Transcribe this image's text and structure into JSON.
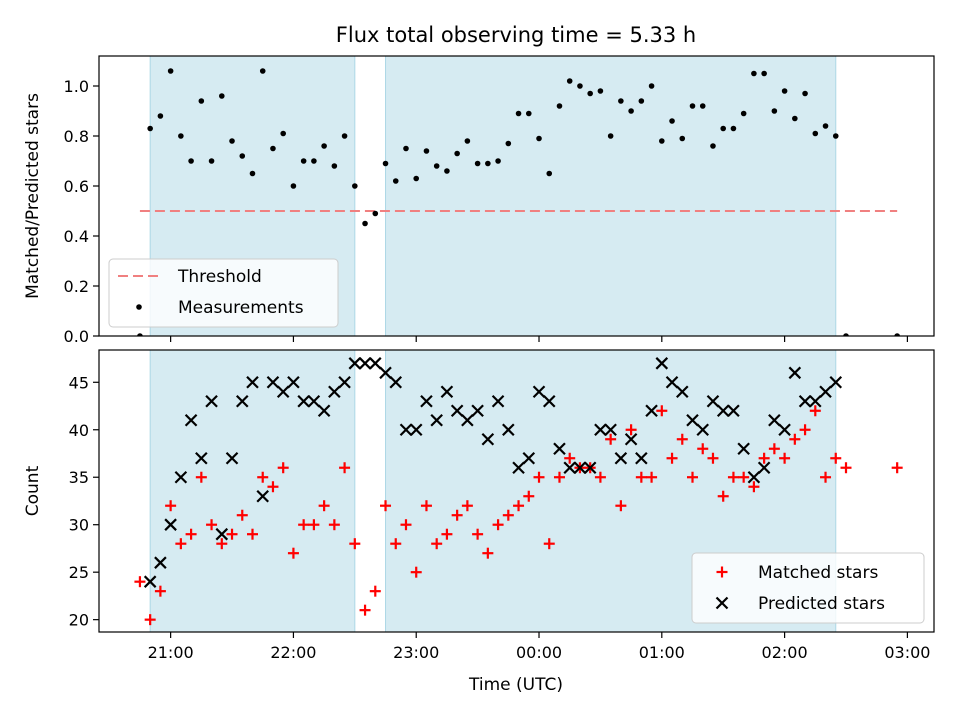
{
  "figure": {
    "title": "Flux total observing time = 5.33 h",
    "xlabel": "Time (UTC)",
    "xtick_labels": [
      "21:00",
      "22:00",
      "23:00",
      "00:00",
      "01:00",
      "02:00",
      "03:00"
    ]
  },
  "colors": {
    "shade": "#add8e6",
    "threshold": "#f08080",
    "measurements": "#000000",
    "matched": "#ff0000",
    "predicted": "#000000"
  },
  "chart_data": [
    {
      "type": "scatter",
      "ylabel": "Matched/Predicted stars",
      "xlim": [
        "20:25",
        "03:13"
      ],
      "ylim": [
        0,
        1.12
      ],
      "yticks": [
        0.0,
        0.2,
        0.4,
        0.6,
        0.8,
        1.0
      ],
      "ytick_labels": [
        "0.0",
        "0.2",
        "0.4",
        "0.6",
        "0.8",
        "1.0"
      ],
      "legend_position": "lower-left",
      "shaded_intervals": [
        [
          "20:50",
          "22:30"
        ],
        [
          "22:45",
          "02:25"
        ]
      ],
      "threshold": {
        "name": "Threshold",
        "value": 0.5,
        "x_range": [
          "20:45",
          "02:55"
        ]
      },
      "series": [
        {
          "name": "Measurements",
          "x": [
            "20:45",
            "20:50",
            "20:55",
            "21:00",
            "21:05",
            "21:10",
            "21:15",
            "21:20",
            "21:25",
            "21:30",
            "21:35",
            "21:40",
            "21:45",
            "21:50",
            "21:55",
            "22:00",
            "22:05",
            "22:10",
            "22:15",
            "22:20",
            "22:25",
            "22:30",
            "22:35",
            "22:40",
            "22:45",
            "22:50",
            "22:55",
            "23:00",
            "23:05",
            "23:10",
            "23:15",
            "23:20",
            "23:25",
            "23:30",
            "23:35",
            "23:40",
            "23:45",
            "23:50",
            "23:55",
            "00:00",
            "00:05",
            "00:10",
            "00:15",
            "00:20",
            "00:25",
            "00:30",
            "00:35",
            "00:40",
            "00:45",
            "00:50",
            "00:55",
            "01:00",
            "01:05",
            "01:10",
            "01:15",
            "01:20",
            "01:25",
            "01:30",
            "01:35",
            "01:40",
            "01:45",
            "01:50",
            "01:55",
            "02:00",
            "02:05",
            "02:10",
            "02:15",
            "02:20",
            "02:25",
            "02:30",
            "02:55"
          ],
          "y": [
            0.0,
            0.83,
            0.88,
            1.06,
            0.8,
            0.7,
            0.94,
            0.7,
            0.96,
            0.78,
            0.72,
            0.65,
            1.06,
            0.75,
            0.81,
            0.6,
            0.7,
            0.7,
            0.76,
            0.68,
            0.8,
            0.6,
            0.45,
            0.49,
            0.69,
            0.62,
            0.75,
            0.63,
            0.74,
            0.68,
            0.66,
            0.73,
            0.78,
            0.69,
            0.69,
            0.7,
            0.77,
            0.89,
            0.89,
            0.79,
            0.65,
            0.92,
            1.02,
            1.0,
            0.97,
            0.98,
            0.8,
            0.94,
            0.9,
            0.94,
            1.0,
            0.78,
            0.86,
            0.79,
            0.92,
            0.92,
            0.76,
            0.83,
            0.83,
            0.89,
            1.05,
            1.05,
            0.9,
            0.98,
            0.87,
            0.97,
            0.81,
            0.84,
            0.8,
            0.0,
            0.0
          ]
        }
      ]
    },
    {
      "type": "scatter",
      "ylabel": "Count",
      "xlim": [
        "20:25",
        "03:13"
      ],
      "ylim": [
        18.7,
        48.4
      ],
      "yticks": [
        20,
        25,
        30,
        35,
        40,
        45
      ],
      "ytick_labels": [
        "20",
        "25",
        "30",
        "35",
        "40",
        "45"
      ],
      "legend_position": "lower-right",
      "shaded_intervals": [
        [
          "20:50",
          "22:30"
        ],
        [
          "22:45",
          "02:25"
        ]
      ],
      "series": [
        {
          "name": "Matched stars",
          "marker": "plus",
          "x": [
            "20:45",
            "20:50",
            "20:55",
            "21:00",
            "21:05",
            "21:10",
            "21:15",
            "21:20",
            "21:25",
            "21:30",
            "21:35",
            "21:40",
            "21:45",
            "21:50",
            "21:55",
            "22:00",
            "22:05",
            "22:10",
            "22:15",
            "22:20",
            "22:25",
            "22:30",
            "22:35",
            "22:40",
            "22:45",
            "22:50",
            "22:55",
            "23:00",
            "23:05",
            "23:10",
            "23:15",
            "23:20",
            "23:25",
            "23:30",
            "23:35",
            "23:40",
            "23:45",
            "23:50",
            "23:55",
            "00:00",
            "00:05",
            "00:10",
            "00:15",
            "00:20",
            "00:25",
            "00:30",
            "00:35",
            "00:40",
            "00:45",
            "00:50",
            "00:55",
            "01:00",
            "01:05",
            "01:10",
            "01:15",
            "01:20",
            "01:25",
            "01:30",
            "01:35",
            "01:40",
            "01:45",
            "01:50",
            "01:55",
            "02:00",
            "02:05",
            "02:10",
            "02:15",
            "02:20",
            "02:25",
            "02:30",
            "02:55"
          ],
          "y": [
            24,
            20,
            23,
            32,
            28,
            29,
            35,
            30,
            28,
            29,
            31,
            29,
            35,
            34,
            36,
            27,
            30,
            30,
            32,
            30,
            36,
            28,
            21,
            23,
            32,
            28,
            30,
            25,
            32,
            28,
            29,
            31,
            32,
            29,
            27,
            30,
            31,
            32,
            33,
            35,
            28,
            35,
            37,
            36,
            36,
            35,
            39,
            32,
            40,
            35,
            35,
            42,
            37,
            39,
            35,
            38,
            37,
            33,
            35,
            35,
            34,
            37,
            38,
            37,
            39,
            40,
            42,
            35,
            37,
            36,
            36
          ]
        },
        {
          "name": "Predicted stars",
          "marker": "x",
          "x": [
            "20:50",
            "20:55",
            "21:00",
            "21:05",
            "21:10",
            "21:15",
            "21:20",
            "21:25",
            "21:30",
            "21:35",
            "21:40",
            "21:45",
            "21:50",
            "21:55",
            "22:00",
            "22:05",
            "22:10",
            "22:15",
            "22:20",
            "22:25",
            "22:30",
            "22:35",
            "22:40",
            "22:45",
            "22:50",
            "22:55",
            "23:00",
            "23:05",
            "23:10",
            "23:15",
            "23:20",
            "23:25",
            "23:30",
            "23:35",
            "23:40",
            "23:45",
            "23:50",
            "23:55",
            "00:00",
            "00:05",
            "00:10",
            "00:15",
            "00:20",
            "00:25",
            "00:30",
            "00:35",
            "00:40",
            "00:45",
            "00:50",
            "00:55",
            "01:00",
            "01:05",
            "01:10",
            "01:15",
            "01:20",
            "01:25",
            "01:30",
            "01:35",
            "01:40",
            "01:45",
            "01:50",
            "01:55",
            "02:00",
            "02:05",
            "02:10",
            "02:15",
            "02:20",
            "02:25"
          ],
          "y": [
            24,
            26,
            30,
            35,
            41,
            37,
            43,
            29,
            37,
            43,
            45,
            33,
            45,
            44,
            45,
            43,
            43,
            42,
            44,
            45,
            47,
            47,
            47,
            46,
            45,
            40,
            40,
            43,
            41,
            44,
            42,
            41,
            42,
            39,
            43,
            40,
            36,
            37,
            44,
            43,
            38,
            36,
            36,
            36,
            40,
            40,
            37,
            39,
            37,
            42,
            47,
            45,
            44,
            41,
            40,
            43,
            42,
            42,
            38,
            35,
            36,
            41,
            40,
            46,
            43,
            43,
            44,
            45
          ]
        }
      ]
    }
  ]
}
